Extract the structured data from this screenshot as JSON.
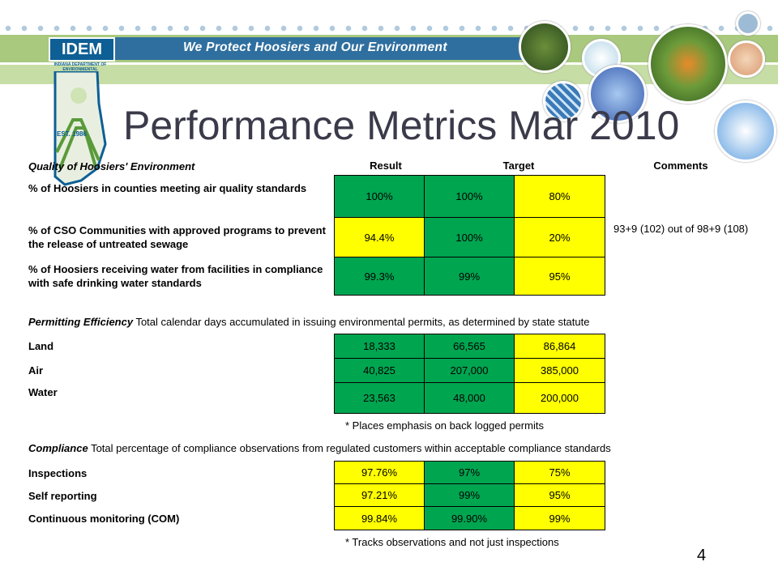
{
  "header": {
    "logo_text": "IDEM",
    "logo_subtitle": "INDIANA DEPARTMENT OF ENVIRONMENTAL MANAGEMENT",
    "logo_est": "EST. 1986",
    "slogan": "We Protect Hoosiers and Our Environment"
  },
  "title": "Performance Metrics Mar 2010",
  "quality": {
    "section_label": "Quality of Hoosiers' Environment",
    "col_result": "Result",
    "col_target": "Target",
    "col_comments": "Comments",
    "rows": [
      {
        "label": "% of Hoosiers in counties meeting air quality standards",
        "result": "100%",
        "target": "100%",
        "third": "80%"
      },
      {
        "label": "% of CSO Communities with approved programs to prevent the release of untreated sewage",
        "result": "94.4%",
        "target": "100%",
        "third": "20%"
      },
      {
        "label": "% of Hoosiers receiving water from facilities in compliance with safe drinking water standards",
        "result": "99.3%",
        "target": "99%",
        "third": "95%"
      }
    ],
    "comment": "93+9 (102) out of 98+9 (108)"
  },
  "permitting": {
    "title": "Permitting Efficiency",
    "description": " Total calendar days accumulated in issuing environmental permits, as determined by state statute",
    "rows": [
      {
        "label": "Land",
        "result": "18,333",
        "target": "66,565",
        "third": "86,864"
      },
      {
        "label": "Air",
        "result": "40,825",
        "target": "207,000",
        "third": "385,000"
      },
      {
        "label": "Water",
        "result": "23,563",
        "target": "48,000",
        "third": "200,000"
      }
    ],
    "note": "* Places emphasis on back logged permits"
  },
  "compliance": {
    "title": "Compliance",
    "description": " Total percentage of compliance observations from regulated customers within acceptable compliance standards",
    "rows": [
      {
        "label": "Inspections",
        "result": "97.76%",
        "target": "97%",
        "third": "75%"
      },
      {
        "label": "Self reporting",
        "result": "97.21%",
        "target": "99%",
        "third": "95%"
      },
      {
        "label": "Continuous monitoring (COM)",
        "result": "99.84%",
        "target": "99.90%",
        "third": "99%"
      }
    ],
    "note": "* Tracks observations and not just inspections"
  },
  "page_number": "4",
  "colors": {
    "green": "#00a550",
    "yellow": "#ffff00",
    "slogan_bar": "#2f6f9f"
  }
}
